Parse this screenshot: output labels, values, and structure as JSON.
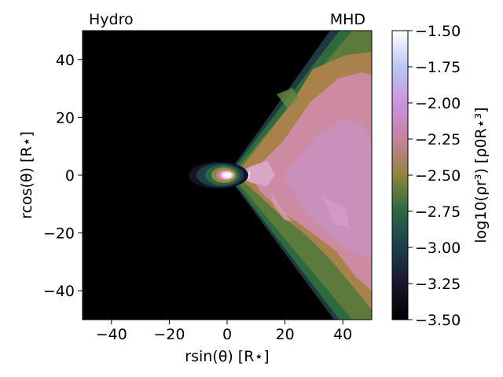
{
  "figure": {
    "panel_left_label": "Hydro",
    "panel_right_label": "MHD"
  },
  "chart_data": {
    "type": "heatmap",
    "title": "",
    "xlabel": "rsin(θ) [R⋆]",
    "ylabel": "rcos(θ) [R⋆]",
    "xlim": [
      -50,
      50
    ],
    "ylim": [
      -50,
      50
    ],
    "xticks": [
      -40,
      -20,
      0,
      20,
      40
    ],
    "yticks": [
      -40,
      -20,
      0,
      20,
      40
    ],
    "grid": false,
    "colorbar": {
      "label": "log10(ρr³) [ρ0R⋆³]",
      "range": [
        -3.5,
        -1.5
      ],
      "ticks": [
        "−1.50",
        "−1.75",
        "−2.00",
        "−2.25",
        "−2.50",
        "−2.75",
        "−3.00",
        "−3.25",
        "−3.50"
      ],
      "tick_values": [
        -1.5,
        -1.75,
        -2.0,
        -2.25,
        -2.5,
        -2.75,
        -3.0,
        -3.25,
        -3.5
      ],
      "colormap": "cubehelix",
      "stops": [
        {
          "value": -3.5,
          "color": "#000000"
        },
        {
          "value": -3.25,
          "color": "#1a1530"
        },
        {
          "value": -3.0,
          "color": "#1c3d4c"
        },
        {
          "value": -2.75,
          "color": "#2a6741"
        },
        {
          "value": -2.5,
          "color": "#8f8540"
        },
        {
          "value": -2.25,
          "color": "#c8829b"
        },
        {
          "value": -2.0,
          "color": "#cb93e0"
        },
        {
          "value": -1.75,
          "color": "#b9c7f3"
        },
        {
          "value": -1.5,
          "color": "#ffffff"
        }
      ]
    }
  }
}
